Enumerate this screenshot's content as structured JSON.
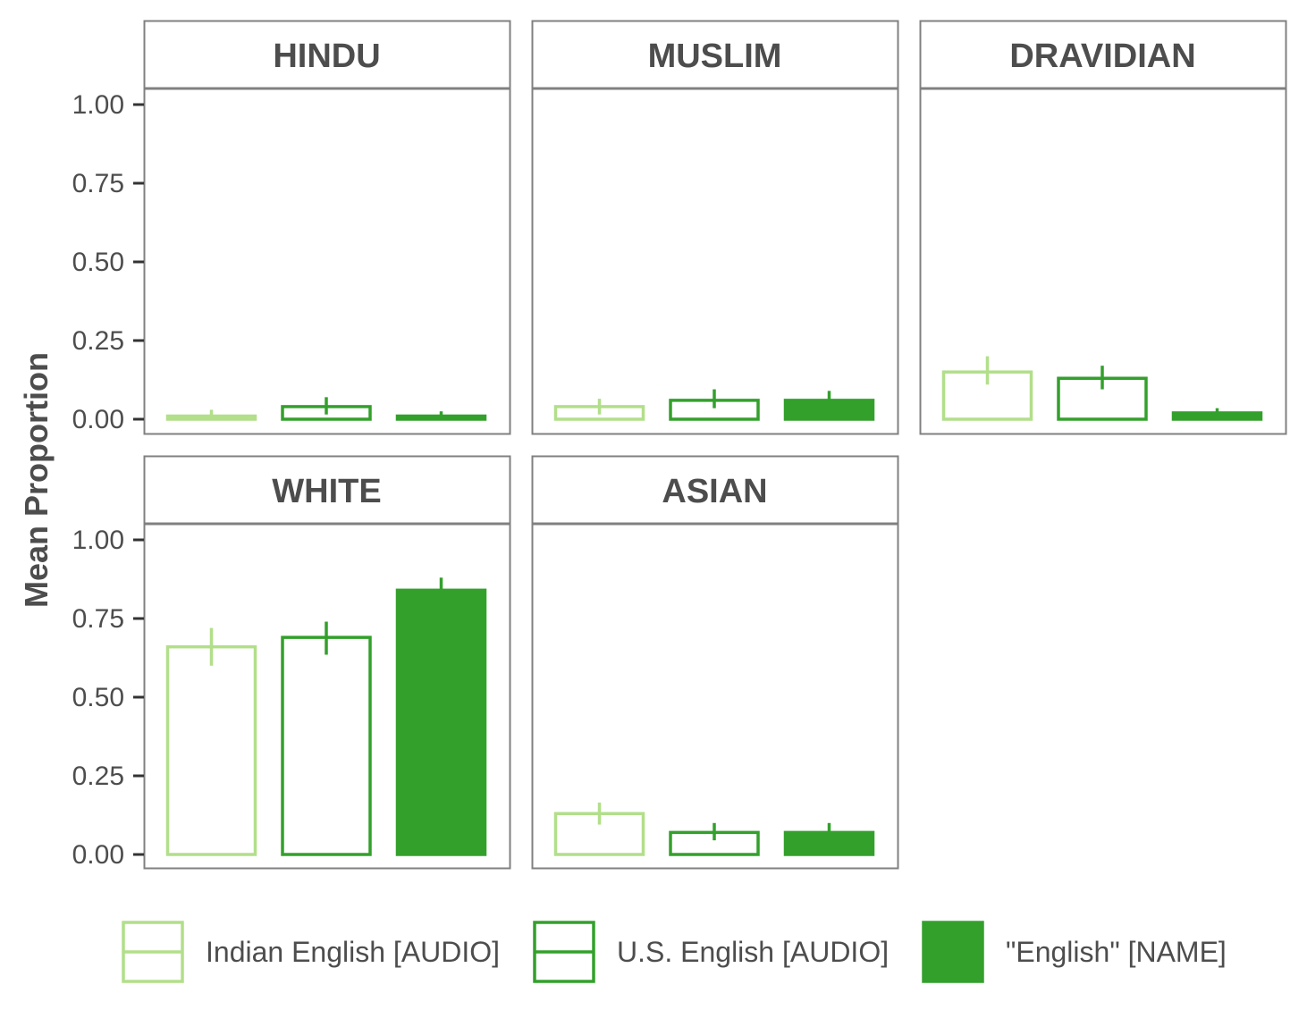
{
  "chart_data": {
    "type": "bar",
    "ylabel": "Mean Proportion",
    "xlabel": "",
    "ylim": [
      0,
      1
    ],
    "yticks": [
      "0.00",
      "0.25",
      "0.50",
      "0.75",
      "1.00"
    ],
    "ytick_values": [
      0,
      0.25,
      0.5,
      0.75,
      1.0
    ],
    "grid": false,
    "legend_position": "bottom",
    "series": [
      {
        "name": "Indian English [AUDIO]",
        "color": "#b2df8a",
        "fill": "none"
      },
      {
        "name": "U.S. English [AUDIO]",
        "color": "#33a02c",
        "fill": "none"
      },
      {
        "name": "\"English\" [NAME]",
        "color": "#33a02c",
        "fill": "#33a02c"
      }
    ],
    "panels": [
      {
        "label": "HINDU",
        "values": [
          0.01,
          0.04,
          0.01
        ],
        "errors": [
          [
            0.0,
            0.03
          ],
          [
            0.015,
            0.07
          ],
          [
            0.0,
            0.025
          ]
        ]
      },
      {
        "label": "MUSLIM",
        "values": [
          0.04,
          0.06,
          0.06
        ],
        "errors": [
          [
            0.015,
            0.065
          ],
          [
            0.035,
            0.095
          ],
          [
            0.035,
            0.09
          ]
        ]
      },
      {
        "label": "DRAVIDIAN",
        "values": [
          0.15,
          0.13,
          0.02
        ],
        "errors": [
          [
            0.11,
            0.2
          ],
          [
            0.095,
            0.17
          ],
          [
            0.0,
            0.035
          ]
        ]
      },
      {
        "label": "WHITE",
        "values": [
          0.66,
          0.69,
          0.84
        ],
        "errors": [
          [
            0.6,
            0.72
          ],
          [
            0.635,
            0.74
          ],
          [
            0.8,
            0.88
          ]
        ]
      },
      {
        "label": "ASIAN",
        "values": [
          0.13,
          0.07,
          0.07
        ],
        "errors": [
          [
            0.095,
            0.165
          ],
          [
            0.045,
            0.1
          ],
          [
            0.045,
            0.1
          ]
        ]
      }
    ]
  }
}
